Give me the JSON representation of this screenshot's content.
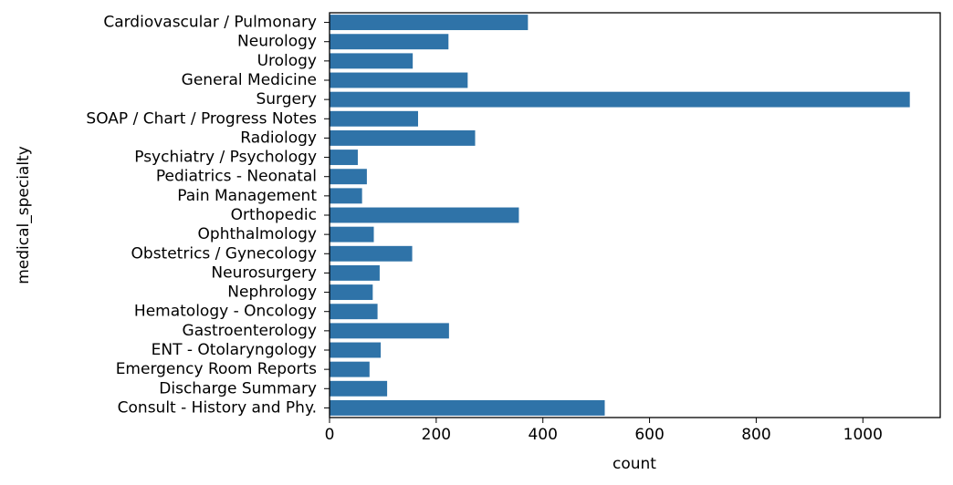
{
  "chart_data": {
    "type": "bar",
    "orientation": "horizontal",
    "xlabel": "count",
    "ylabel": "medical_specialty",
    "xlim": [
      0,
      1145
    ],
    "xticks": [
      0,
      200,
      400,
      600,
      800,
      1000
    ],
    "grid": false,
    "bar_color": "#2f73a8",
    "categories": [
      "Cardiovascular / Pulmonary",
      "Neurology",
      "Urology",
      "General Medicine",
      "Surgery",
      "SOAP / Chart / Progress Notes",
      "Radiology",
      "Psychiatry / Psychology",
      "Pediatrics - Neonatal",
      "Pain Management",
      "Orthopedic",
      "Ophthalmology",
      "Obstetrics / Gynecology",
      "Neurosurgery",
      "Nephrology",
      "Hematology - Oncology",
      "Gastroenterology",
      "ENT - Otolaryngology",
      "Emergency Room Reports",
      "Discharge Summary",
      "Consult - History and Phy."
    ],
    "values": [
      372,
      223,
      156,
      259,
      1088,
      166,
      273,
      53,
      70,
      61,
      355,
      83,
      155,
      94,
      81,
      90,
      224,
      96,
      75,
      108,
      516
    ]
  }
}
